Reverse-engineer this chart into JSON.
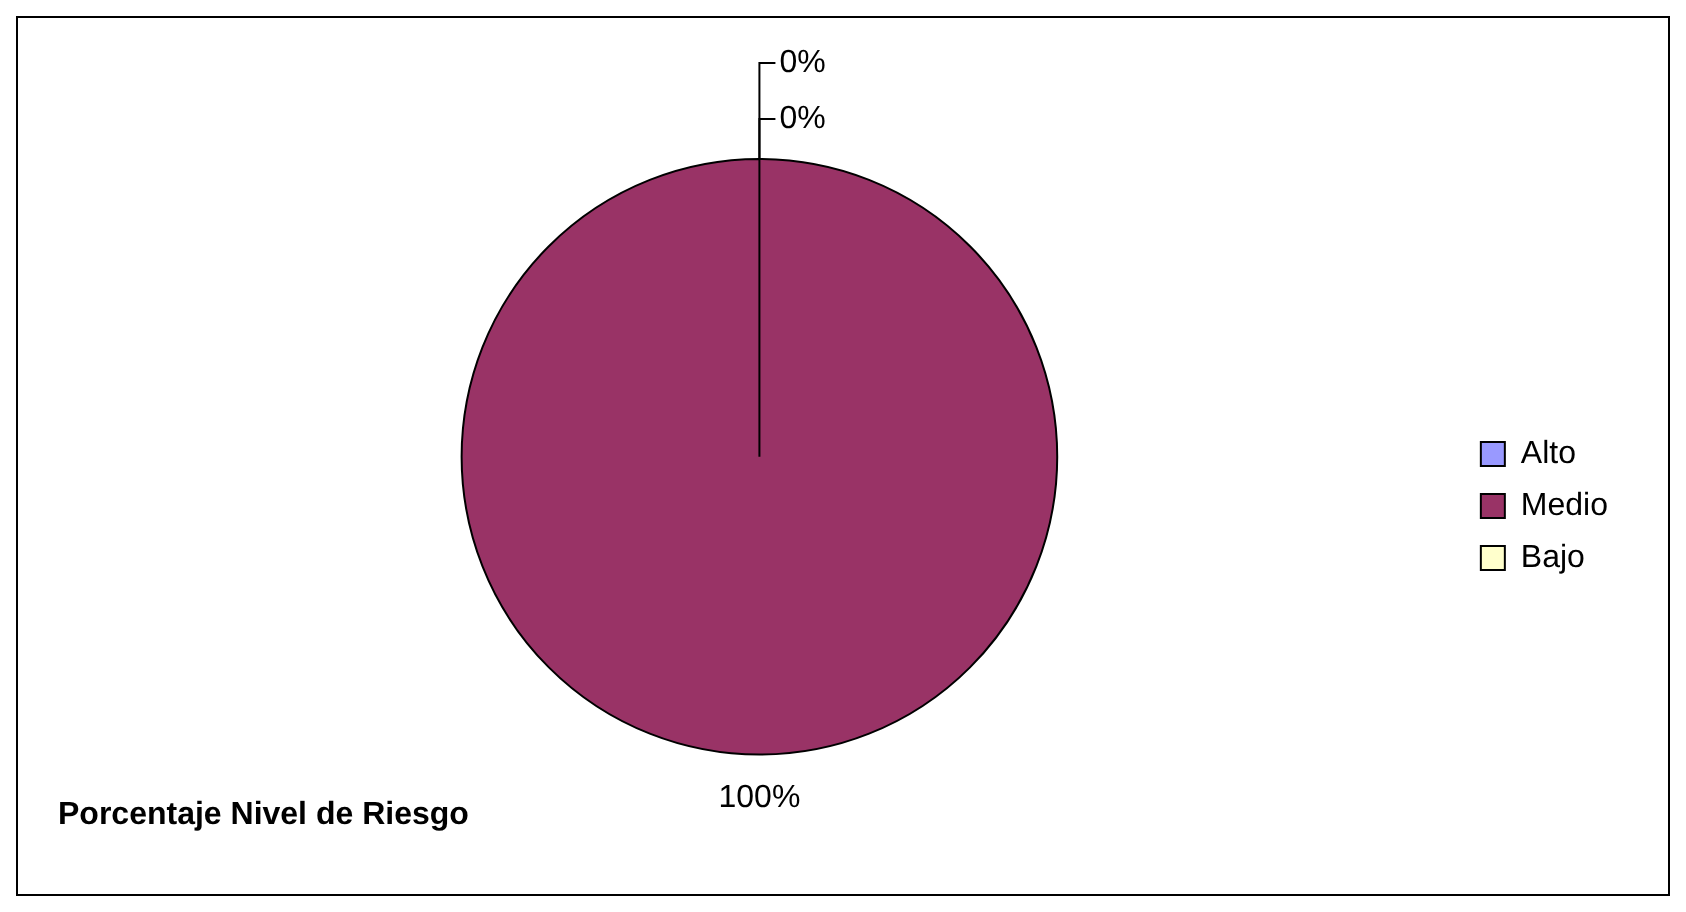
{
  "chart_data": {
    "type": "pie",
    "title": "Porcentaje Nivel de Riesgo",
    "categories": [
      "Alto",
      "Medio",
      "Bajo"
    ],
    "values": [
      0,
      100,
      0
    ],
    "colors": [
      "#9999ff",
      "#993366",
      "#ffffcc"
    ],
    "value_labels": [
      "0%",
      "100%",
      "0%"
    ],
    "legend": "right"
  }
}
